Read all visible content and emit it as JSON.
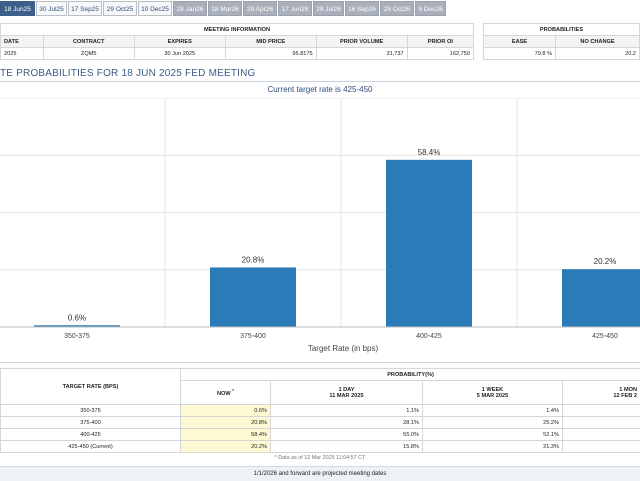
{
  "tabs": [
    {
      "label": "18 Jun25",
      "state": "active"
    },
    {
      "label": "30 Jul25",
      "state": "future"
    },
    {
      "label": "17 Sep25",
      "state": "future"
    },
    {
      "label": "29 Oct25",
      "state": "future"
    },
    {
      "label": "10 Dec25",
      "state": "future"
    },
    {
      "label": "28 Jan26",
      "state": "past"
    },
    {
      "label": "18 Mar26",
      "state": "past"
    },
    {
      "label": "29 Apr26",
      "state": "past"
    },
    {
      "label": "17 Jun26",
      "state": "past"
    },
    {
      "label": "29 Jul26",
      "state": "past"
    },
    {
      "label": "16 Sep26",
      "state": "past"
    },
    {
      "label": "28 Oct26",
      "state": "past"
    },
    {
      "label": "9 Dec26",
      "state": "past"
    }
  ],
  "meeting_info": {
    "header": "MEETING INFORMATION",
    "columns": [
      "DATE",
      "CONTRACT",
      "EXPIRES",
      "MID PRICE",
      "PRIOR VOLUME",
      "PRIOR OI"
    ],
    "values": [
      "2025",
      "ZQM5",
      "30 Jun 2025",
      "95.8175",
      "31,737",
      "162,750"
    ]
  },
  "probabilities": {
    "header": "PROBABILITIES",
    "columns": [
      "EASE",
      "NO CHANGE"
    ],
    "values": [
      "79.8 %",
      "20.2"
    ]
  },
  "chart_title": "TE PROBABILITIES FOR 18 JUN 2025 FED MEETING",
  "chart_subtitle": "Current target rate is 425-450",
  "chart_data": {
    "type": "bar",
    "categories": [
      "350-375",
      "375-400",
      "400-425",
      "425-450"
    ],
    "values": [
      0.6,
      20.8,
      58.4,
      20.2
    ],
    "value_labels": [
      "0.6%",
      "20.8%",
      "58.4%",
      "20.2%"
    ],
    "xlabel": "Target Rate (in bps)",
    "ylabel": "",
    "ylim": [
      0,
      80
    ],
    "grid": true,
    "color": "#2b7bb9"
  },
  "bottom": {
    "target_header": "TARGET RATE (BPS)",
    "prob_header": "PROBABILITY(%)",
    "now_label": "NOW",
    "now_marker": "*",
    "day_label": "1 DAY",
    "day_date": "11 MAR 2025",
    "week_label": "1 WEEK",
    "week_date": "5 MAR 2025",
    "month_label": "1 MON",
    "month_date": "12 FEB 2",
    "rows": [
      {
        "rate": "350-375",
        "now": "0.6%",
        "day": "1.1%",
        "week": "1.4%"
      },
      {
        "rate": "375-400",
        "now": "20.8%",
        "day": "28.1%",
        "week": "25.2%"
      },
      {
        "rate": "400-425",
        "now": "58.4%",
        "day": "55.0%",
        "week": "52.1%"
      },
      {
        "rate": "425-450 (Current)",
        "now": "20.2%",
        "day": "15.8%",
        "week": "21.3%"
      }
    ],
    "note": "* Data as of 12 Mar 2025 11:04:57 CT",
    "footer": "1/1/2026 and forward are projected meeting dates"
  }
}
